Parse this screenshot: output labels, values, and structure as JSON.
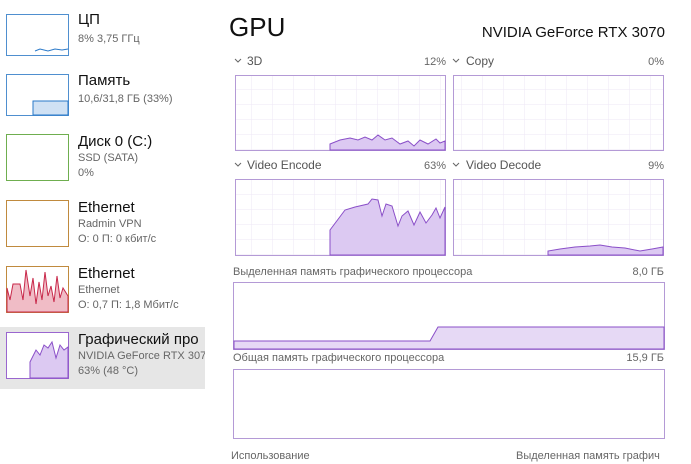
{
  "sidebar": {
    "items": [
      {
        "name": "ЦП",
        "lines": [
          "8% 3,75 ГГц"
        ]
      },
      {
        "name": "Память",
        "lines": [
          "10,6/31,8 ГБ (33%)"
        ]
      },
      {
        "name": "Диск 0 (C:)",
        "lines": [
          "SSD (SATA)",
          "0%"
        ]
      },
      {
        "name": "Ethernet",
        "lines": [
          "Radmin VPN",
          "О: 0 П: 0 кбит/с"
        ]
      },
      {
        "name": "Ethernet",
        "lines": [
          "Ethernet",
          "О: 0,7 П: 1,8 Мбит/с"
        ]
      },
      {
        "name": "Графический про",
        "lines": [
          "NVIDIA GeForce RTX 307",
          "63% (48 °C)"
        ]
      }
    ]
  },
  "header": {
    "title": "GPU",
    "device": "NVIDIA GeForce RTX 3070"
  },
  "engines": [
    {
      "label": "3D",
      "value": "12%"
    },
    {
      "label": "Copy",
      "value": "0%"
    },
    {
      "label": "Video Encode",
      "value": "63%"
    },
    {
      "label": "Video Decode",
      "value": "9%"
    }
  ],
  "memory": [
    {
      "label": "Выделенная память графического процессора",
      "value": "8,0 ГБ"
    },
    {
      "label": "Общая память графического процессора",
      "value": "15,9 ГБ"
    }
  ],
  "footer": [
    "Использование",
    "Выделенная память графич"
  ]
}
